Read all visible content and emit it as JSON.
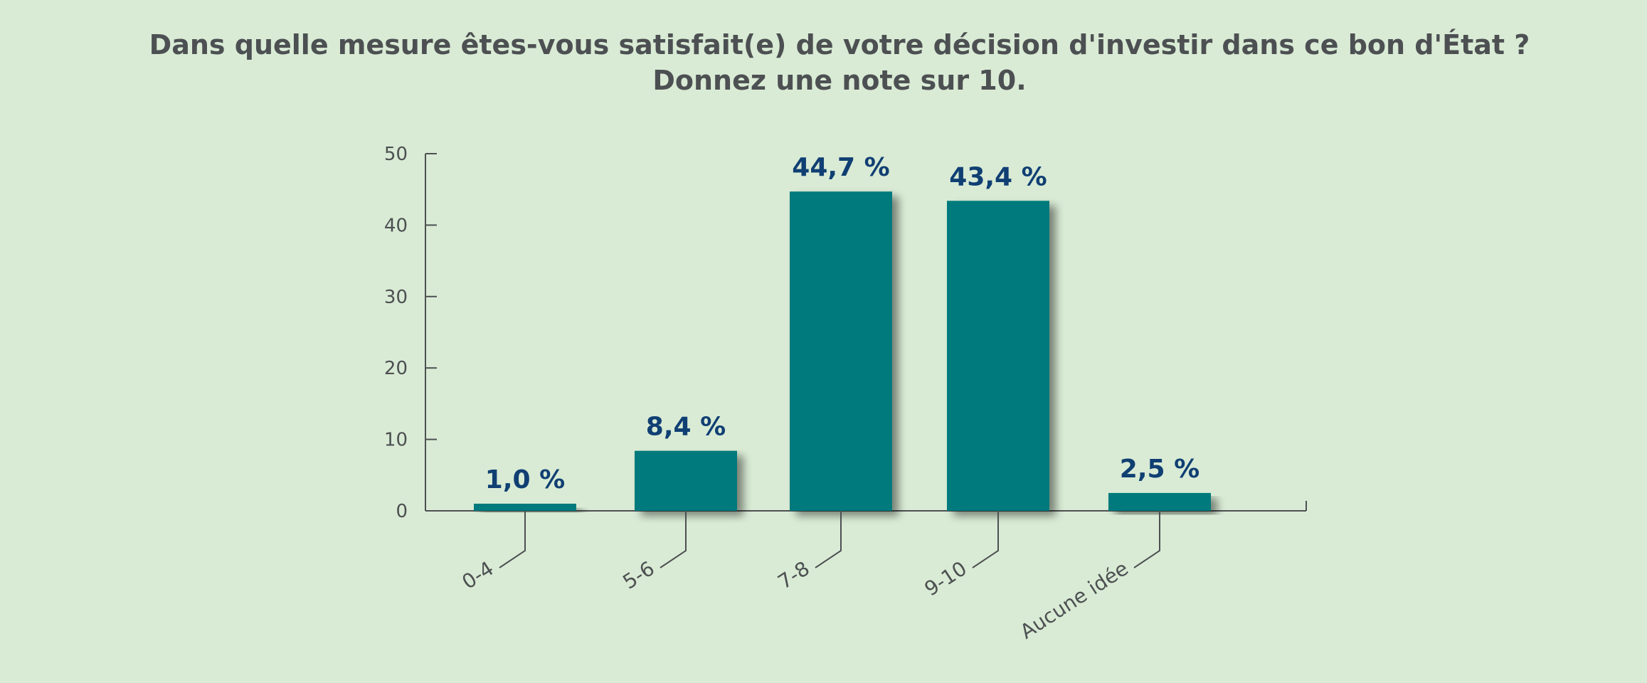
{
  "chart_data": {
    "type": "bar",
    "title_line1": "Dans quelle mesure êtes-vous satisfait(e) de votre décision d'investir dans ce bon d'État ?",
    "title_line2": "Donnez une note sur 10.",
    "categories": [
      "0-4",
      "5-6",
      "7-8",
      "9-10",
      "Aucune idée"
    ],
    "values": [
      1.0,
      8.4,
      44.7,
      43.4,
      2.5
    ],
    "data_labels": [
      "1,0 %",
      "8,4 %",
      "44,7 %",
      "43,4 %",
      "2,5 %"
    ],
    "ylim": [
      0,
      50
    ],
    "yticks": [
      0,
      10,
      20,
      30,
      40,
      50
    ],
    "xlabel": "",
    "ylabel": "",
    "grid": false,
    "legend": "none",
    "colors": {
      "bar": "#037a7c",
      "data_label": "#103f73",
      "axis": "#4d5052",
      "background": "#d9ebd5"
    }
  }
}
